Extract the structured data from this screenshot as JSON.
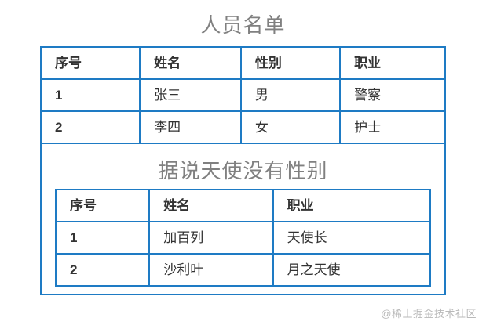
{
  "page": {
    "watermark": "@稀土掘金技术社区"
  },
  "colors": {
    "background": "#ffffff",
    "table_border": "#1e7bc4",
    "title_text": "#808080",
    "cell_text": "#333333",
    "watermark_text": "#b9b9b9"
  },
  "personnel_table": {
    "title": "人员名单",
    "headers": [
      "序号",
      "姓名",
      "性别",
      "职业"
    ],
    "rows": [
      {
        "index": "1",
        "name": "张三",
        "gender": "男",
        "occupation": "警察"
      },
      {
        "index": "2",
        "name": "李四",
        "gender": "女",
        "occupation": "护士"
      }
    ]
  },
  "angel_table": {
    "title": "据说天使没有性别",
    "headers": [
      "序号",
      "姓名",
      "职业"
    ],
    "rows": [
      {
        "index": "1",
        "name": "加百列",
        "occupation": "天使长"
      },
      {
        "index": "2",
        "name": "沙利叶",
        "occupation": "月之天使"
      }
    ]
  }
}
